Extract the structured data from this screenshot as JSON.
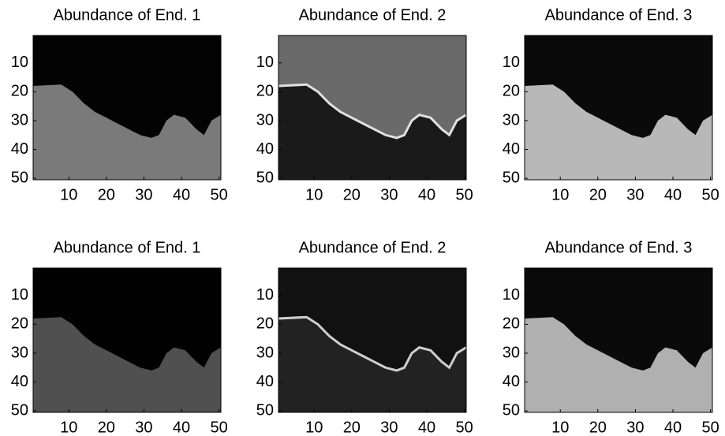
{
  "chart_data": [
    {
      "type": "image",
      "title": "Abundance of End. 1",
      "xlim": [
        0.5,
        50.5
      ],
      "ylim": [
        0.5,
        50.5
      ],
      "y_inverted": true,
      "xticks": [
        10,
        20,
        30,
        40,
        50
      ],
      "yticks": [
        10,
        20,
        30,
        40,
        50
      ]
    },
    {
      "type": "image",
      "title": "Abundance of End. 2",
      "xlim": [
        0.5,
        50.5
      ],
      "ylim": [
        0.5,
        50.5
      ],
      "y_inverted": true,
      "xticks": [
        10,
        20,
        30,
        40,
        50
      ],
      "yticks": [
        10,
        20,
        30,
        40,
        50
      ]
    },
    {
      "type": "image",
      "title": "Abundance of End. 3",
      "xlim": [
        0.5,
        50.5
      ],
      "ylim": [
        0.5,
        50.5
      ],
      "y_inverted": true,
      "xticks": [
        10,
        20,
        30,
        40,
        50
      ],
      "yticks": [
        10,
        20,
        30,
        40,
        50
      ]
    },
    {
      "type": "image",
      "title": "Abundance of End. 1",
      "xlim": [
        0.5,
        50.5
      ],
      "ylim": [
        0.5,
        50.5
      ],
      "y_inverted": true,
      "xticks": [
        10,
        20,
        30,
        40,
        50
      ],
      "yticks": [
        10,
        20,
        30,
        40,
        50
      ]
    },
    {
      "type": "image",
      "title": "Abundance of End. 2",
      "xlim": [
        0.5,
        50.5
      ],
      "ylim": [
        0.5,
        50.5
      ],
      "y_inverted": true,
      "xticks": [
        10,
        20,
        30,
        40,
        50
      ],
      "yticks": [
        10,
        20,
        30,
        40,
        50
      ]
    },
    {
      "type": "image",
      "title": "Abundance of End. 3",
      "xlim": [
        0.5,
        50.5
      ],
      "ylim": [
        0.5,
        50.5
      ],
      "y_inverted": true,
      "xticks": [
        10,
        20,
        30,
        40,
        50
      ],
      "yticks": [
        10,
        20,
        30,
        40,
        50
      ]
    }
  ]
}
